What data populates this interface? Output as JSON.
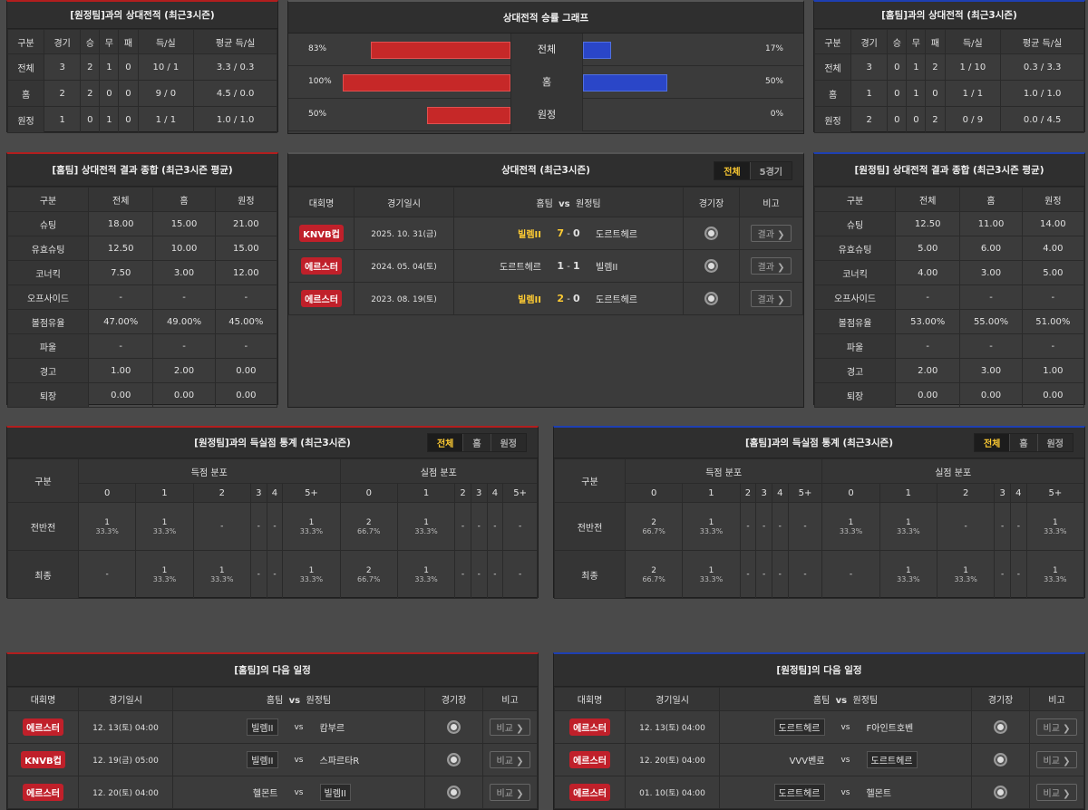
{
  "h2h_away": {
    "title": "[원정팀]과의 상대전적 (최근3시즌)",
    "headers": [
      "구분",
      "경기",
      "승",
      "무",
      "패",
      "득/실",
      "평균 득/실"
    ],
    "rows": [
      [
        "전체",
        "3",
        "2",
        "1",
        "0",
        "10 / 1",
        "3.3 / 0.3"
      ],
      [
        "홈",
        "2",
        "2",
        "0",
        "0",
        "9 / 0",
        "4.5 / 0.0"
      ],
      [
        "원정",
        "1",
        "0",
        "1",
        "0",
        "1 / 1",
        "1.0 / 1.0"
      ]
    ]
  },
  "graph": {
    "title": "상대전적 승률 그래프",
    "rows": [
      {
        "label": "전체",
        "left_pct": "83%",
        "right_pct": "17%",
        "left": 83,
        "right": 17
      },
      {
        "label": "홈",
        "left_pct": "100%",
        "right_pct": "50%",
        "left": 100,
        "right": 50
      },
      {
        "label": "원정",
        "left_pct": "50%",
        "right_pct": "0%",
        "left": 50,
        "right": 0
      }
    ]
  },
  "h2h_home": {
    "title": "[홈팀]과의 상대전적 (최근3시즌)",
    "headers": [
      "구분",
      "경기",
      "승",
      "무",
      "패",
      "득/실",
      "평균 득/실"
    ],
    "rows": [
      [
        "전체",
        "3",
        "0",
        "1",
        "2",
        "1 / 10",
        "0.3 / 3.3"
      ],
      [
        "홈",
        "1",
        "0",
        "1",
        "0",
        "1 / 1",
        "1.0 / 1.0"
      ],
      [
        "원정",
        "2",
        "0",
        "0",
        "2",
        "0 / 9",
        "0.0 / 4.5"
      ]
    ]
  },
  "sum_home": {
    "title": "[홈팀] 상대전적 결과 종합 (최근3시즌 평균)",
    "headers": [
      "구분",
      "전체",
      "홈",
      "원정"
    ],
    "rows": [
      [
        "슈팅",
        "18.00",
        "15.00",
        "21.00"
      ],
      [
        "유효슈팅",
        "12.50",
        "10.00",
        "15.00"
      ],
      [
        "코너킥",
        "7.50",
        "3.00",
        "12.00"
      ],
      [
        "오프사이드",
        "-",
        "-",
        "-"
      ],
      [
        "볼점유율",
        "47.00%",
        "49.00%",
        "45.00%"
      ],
      [
        "파울",
        "-",
        "-",
        "-"
      ],
      [
        "경고",
        "1.00",
        "2.00",
        "0.00"
      ],
      [
        "퇴장",
        "0.00",
        "0.00",
        "0.00"
      ]
    ]
  },
  "matches": {
    "title": "상대전적 (최근3시즌)",
    "tabs": [
      "전체",
      "5경기"
    ],
    "headers": {
      "comp": "대회명",
      "date": "경기일시",
      "home": "홈팀",
      "vs": "vs",
      "away": "원정팀",
      "venue": "경기장",
      "note": "비고"
    },
    "rows": [
      {
        "comp": "KNVB컵",
        "date": "2025. 10. 31(금)",
        "home": "빌렘II",
        "hs": "7",
        "sep": "-",
        "as": "0",
        "away": "도르트헤르",
        "btn": "결과",
        "winner": "home"
      },
      {
        "comp": "에르스터",
        "date": "2024. 05. 04(토)",
        "home": "도르트헤르",
        "hs": "1",
        "sep": "-",
        "as": "1",
        "away": "빌렘II",
        "btn": "결과",
        "winner": "none"
      },
      {
        "comp": "에르스터",
        "date": "2023. 08. 19(토)",
        "home": "빌렘II",
        "hs": "2",
        "sep": "-",
        "as": "0",
        "away": "도르트헤르",
        "btn": "결과",
        "winner": "home"
      }
    ]
  },
  "sum_away": {
    "title": "[원정팀] 상대전적 결과 종합 (최근3시즌 평균)",
    "headers": [
      "구분",
      "전체",
      "홈",
      "원정"
    ],
    "rows": [
      [
        "슈팅",
        "12.50",
        "11.00",
        "14.00"
      ],
      [
        "유효슈팅",
        "5.00",
        "6.00",
        "4.00"
      ],
      [
        "코너킥",
        "4.00",
        "3.00",
        "5.00"
      ],
      [
        "오프사이드",
        "-",
        "-",
        "-"
      ],
      [
        "볼점유율",
        "53.00%",
        "55.00%",
        "51.00%"
      ],
      [
        "파울",
        "-",
        "-",
        "-"
      ],
      [
        "경고",
        "2.00",
        "3.00",
        "1.00"
      ],
      [
        "퇴장",
        "0.00",
        "0.00",
        "0.00"
      ]
    ]
  },
  "goals_away": {
    "title": "[원정팀]과의 득실점 통계 (최근3시즌)",
    "tabs": [
      "전체",
      "홈",
      "원정"
    ],
    "label": "구분",
    "scored": "득점 분포",
    "conceded": "실점 분포",
    "cols": [
      "0",
      "1",
      "2",
      "3",
      "4",
      "5+"
    ],
    "rows": [
      {
        "label": "전반전",
        "cells": [
          [
            "1",
            "33.3%"
          ],
          [
            "1",
            "33.3%"
          ],
          [
            "-",
            ""
          ],
          [
            "-",
            ""
          ],
          [
            "-",
            ""
          ],
          [
            "1",
            "33.3%"
          ],
          [
            "2",
            "66.7%"
          ],
          [
            "1",
            "33.3%"
          ],
          [
            "-",
            ""
          ],
          [
            "-",
            ""
          ],
          [
            "-",
            ""
          ],
          [
            "-",
            ""
          ]
        ]
      },
      {
        "label": "최종",
        "cells": [
          [
            "-",
            ""
          ],
          [
            "1",
            "33.3%"
          ],
          [
            "1",
            "33.3%"
          ],
          [
            "-",
            ""
          ],
          [
            "-",
            ""
          ],
          [
            "1",
            "33.3%"
          ],
          [
            "2",
            "66.7%"
          ],
          [
            "1",
            "33.3%"
          ],
          [
            "-",
            ""
          ],
          [
            "-",
            ""
          ],
          [
            "-",
            ""
          ],
          [
            "-",
            ""
          ]
        ]
      }
    ]
  },
  "goals_home": {
    "title": "[홈팀]과의 득실점 통계 (최근3시즌)",
    "tabs": [
      "전체",
      "홈",
      "원정"
    ],
    "label": "구분",
    "scored": "득점 분포",
    "conceded": "실점 분포",
    "cols": [
      "0",
      "1",
      "2",
      "3",
      "4",
      "5+"
    ],
    "rows": [
      {
        "label": "전반전",
        "cells": [
          [
            "2",
            "66.7%"
          ],
          [
            "1",
            "33.3%"
          ],
          [
            "-",
            ""
          ],
          [
            "-",
            ""
          ],
          [
            "-",
            ""
          ],
          [
            "-",
            ""
          ],
          [
            "1",
            "33.3%"
          ],
          [
            "1",
            "33.3%"
          ],
          [
            "-",
            ""
          ],
          [
            "-",
            ""
          ],
          [
            "-",
            ""
          ],
          [
            "1",
            "33.3%"
          ]
        ]
      },
      {
        "label": "최종",
        "cells": [
          [
            "2",
            "66.7%"
          ],
          [
            "1",
            "33.3%"
          ],
          [
            "-",
            ""
          ],
          [
            "-",
            ""
          ],
          [
            "-",
            ""
          ],
          [
            "-",
            ""
          ],
          [
            "-",
            ""
          ],
          [
            "1",
            "33.3%"
          ],
          [
            "1",
            "33.3%"
          ],
          [
            "-",
            ""
          ],
          [
            "-",
            ""
          ],
          [
            "1",
            "33.3%"
          ]
        ]
      }
    ]
  },
  "next_home": {
    "title": "[홈팀]의 다음 일정",
    "headers": {
      "comp": "대회명",
      "date": "경기일시",
      "home": "홈팀",
      "vs": "vs",
      "away": "원정팀",
      "venue": "경기장",
      "note": "비고"
    },
    "rows": [
      {
        "comp": "에르스터",
        "date": "12. 13(토) 04:00",
        "home": "빌렘II",
        "vs": "vs",
        "away": "캄부르",
        "btn": "비교",
        "mark": "home"
      },
      {
        "comp": "KNVB컵",
        "date": "12. 19(금) 05:00",
        "home": "빌렘II",
        "vs": "vs",
        "away": "스파르타R",
        "btn": "비교",
        "mark": "home"
      },
      {
        "comp": "에르스터",
        "date": "12. 20(토) 04:00",
        "home": "헬몬트",
        "vs": "vs",
        "away": "빌렘II",
        "btn": "비교",
        "mark": "away"
      }
    ]
  },
  "next_away": {
    "title": "[원정팀]의 다음 일정",
    "headers": {
      "comp": "대회명",
      "date": "경기일시",
      "home": "홈팀",
      "vs": "vs",
      "away": "원정팀",
      "venue": "경기장",
      "note": "비고"
    },
    "rows": [
      {
        "comp": "에르스터",
        "date": "12. 13(토) 04:00",
        "home": "도르트헤르",
        "vs": "vs",
        "away": "F아인트호벤",
        "btn": "비교",
        "mark": "home"
      },
      {
        "comp": "에르스터",
        "date": "12. 20(토) 04:00",
        "home": "VVV벤로",
        "vs": "vs",
        "away": "도르트헤르",
        "btn": "비교",
        "mark": "away"
      },
      {
        "comp": "에르스터",
        "date": "01. 10(토) 04:00",
        "home": "도르트헤르",
        "vs": "vs",
        "away": "헬몬트",
        "btn": "비교",
        "mark": "home"
      }
    ]
  },
  "colors": {
    "red": "#c62828",
    "blue": "#2a46c8",
    "highlight": "#ffcc33",
    "badge": "#c0202a"
  }
}
